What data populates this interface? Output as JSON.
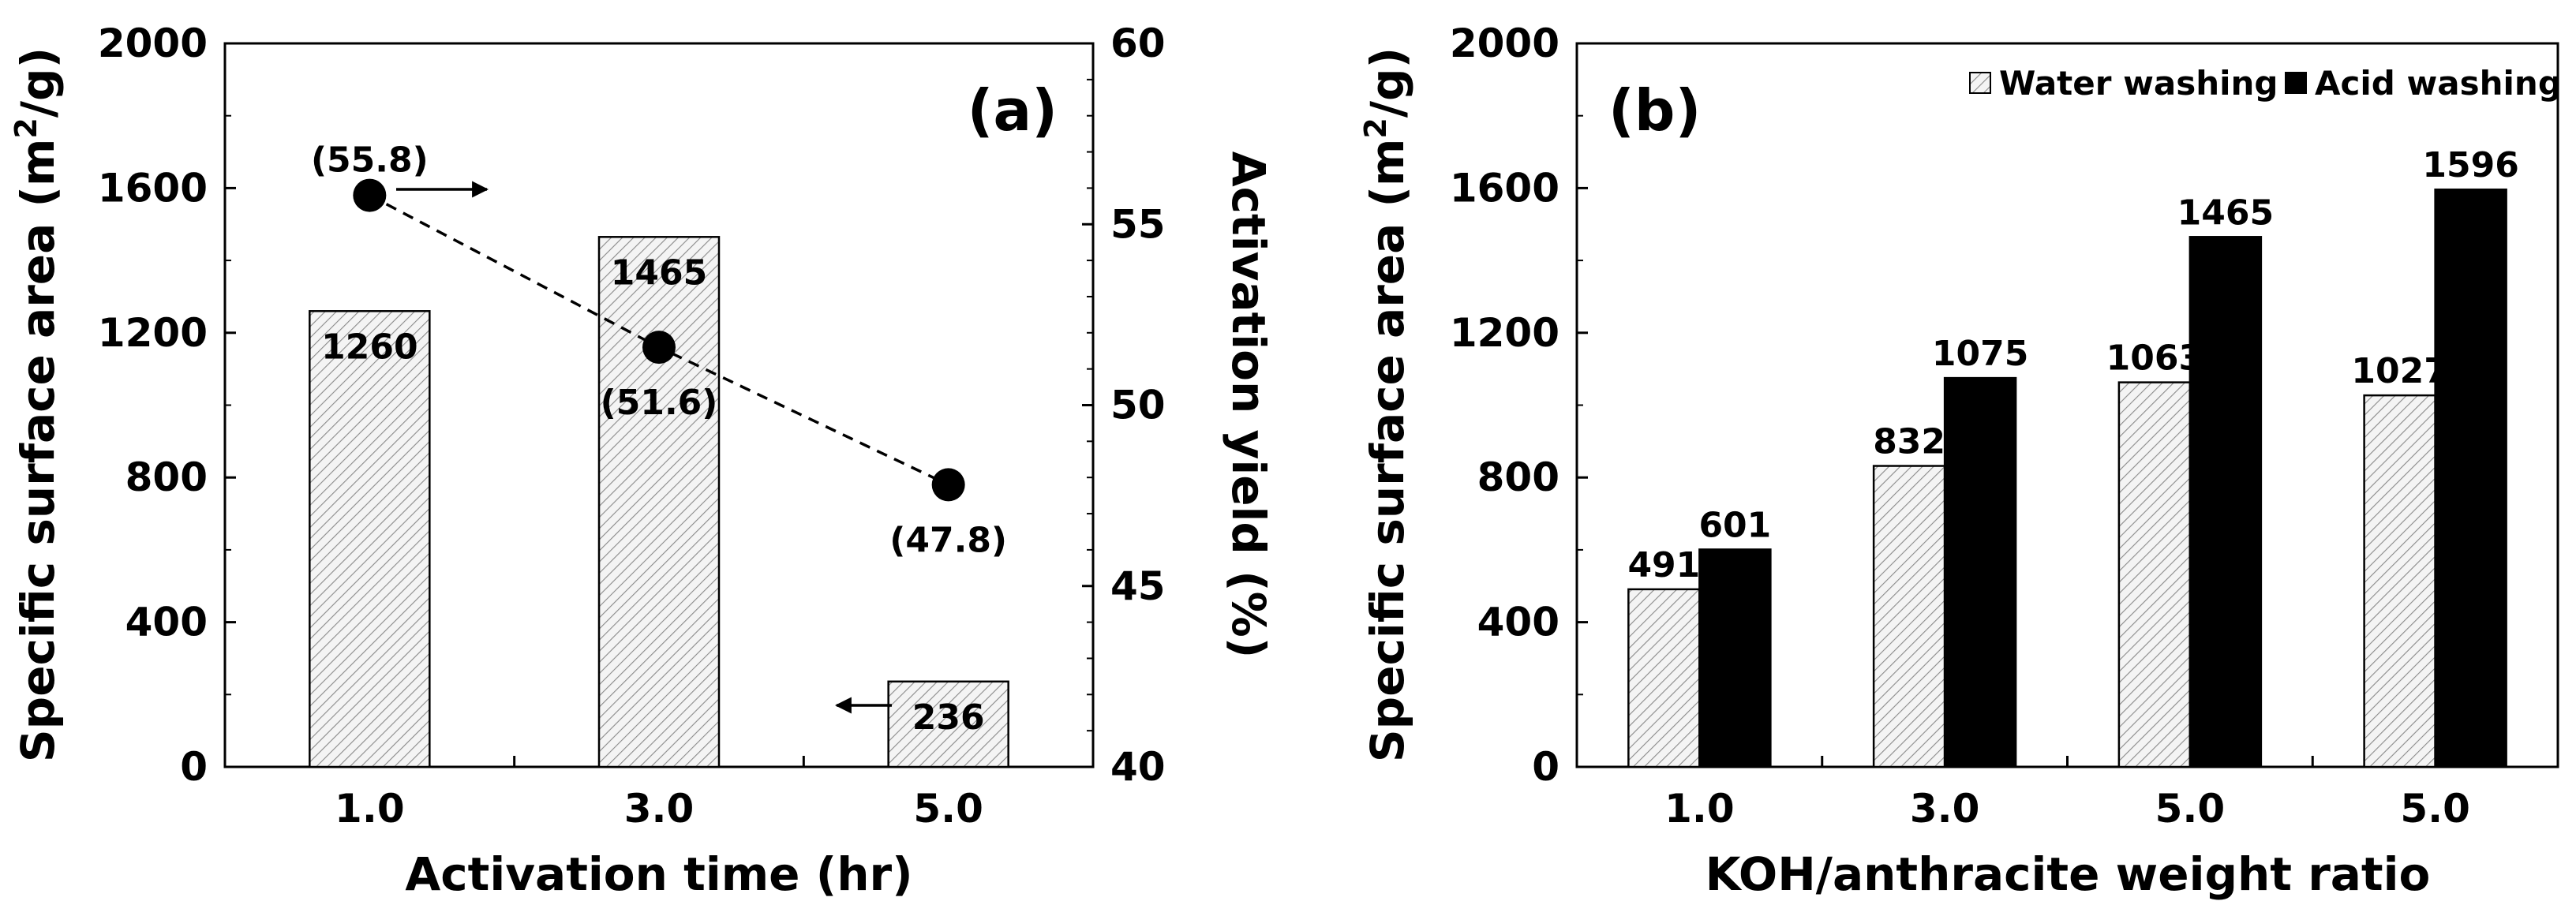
{
  "chart_data": [
    {
      "panel": "(a)",
      "type": "bar",
      "categories": [
        "1.0",
        "3.0",
        "5.0"
      ],
      "xlabel": "Activation time (hr)",
      "ylabel_prefix": "Specific surface area (m",
      "ylabel_sup": "2",
      "ylabel_suffix": "/g)",
      "ylim": [
        0,
        2000
      ],
      "yticks": [
        "0",
        "400",
        "800",
        "1200",
        "1600",
        "2000"
      ],
      "bars": {
        "values": [
          1260,
          1465,
          236
        ],
        "labels": [
          "1260",
          "1465",
          "236"
        ],
        "fill": "#f2f2f2"
      },
      "secondary": {
        "type": "line",
        "ylabel": "Activation yield (%)",
        "ylim": [
          40,
          60
        ],
        "yticks": [
          "40",
          "45",
          "50",
          "55",
          "60"
        ],
        "values": [
          55.8,
          51.6,
          47.8
        ],
        "labels": [
          "(55.8)",
          "(51.6)",
          "(47.8)"
        ],
        "style": "dashed"
      },
      "arrows": [
        "right arrow near yield point 1.0 → yield axis",
        "left arrow near bar 5.0 → area axis"
      ]
    },
    {
      "panel": "(b)",
      "type": "bar",
      "categories": [
        "1.0",
        "3.0",
        "5.0",
        "5.0"
      ],
      "xlabel": "KOH/anthracite weight ratio",
      "ylabel_prefix": "Specific surface area (m",
      "ylabel_sup": "2",
      "ylabel_suffix": "/g)",
      "ylim": [
        0,
        2000
      ],
      "yticks": [
        "0",
        "400",
        "800",
        "1200",
        "1600",
        "2000"
      ],
      "legend_position": "top-right",
      "series": [
        {
          "name": "Water washing",
          "values": [
            491,
            832,
            1063,
            1027
          ],
          "labels": [
            "491",
            "832",
            "1063",
            "1027"
          ],
          "color": "#e6e6e6"
        },
        {
          "name": "Acid washing",
          "values": [
            601,
            1075,
            1465,
            1596
          ],
          "labels": [
            "601",
            "1075",
            "1465",
            "1596"
          ],
          "color": "#000000"
        }
      ]
    }
  ]
}
